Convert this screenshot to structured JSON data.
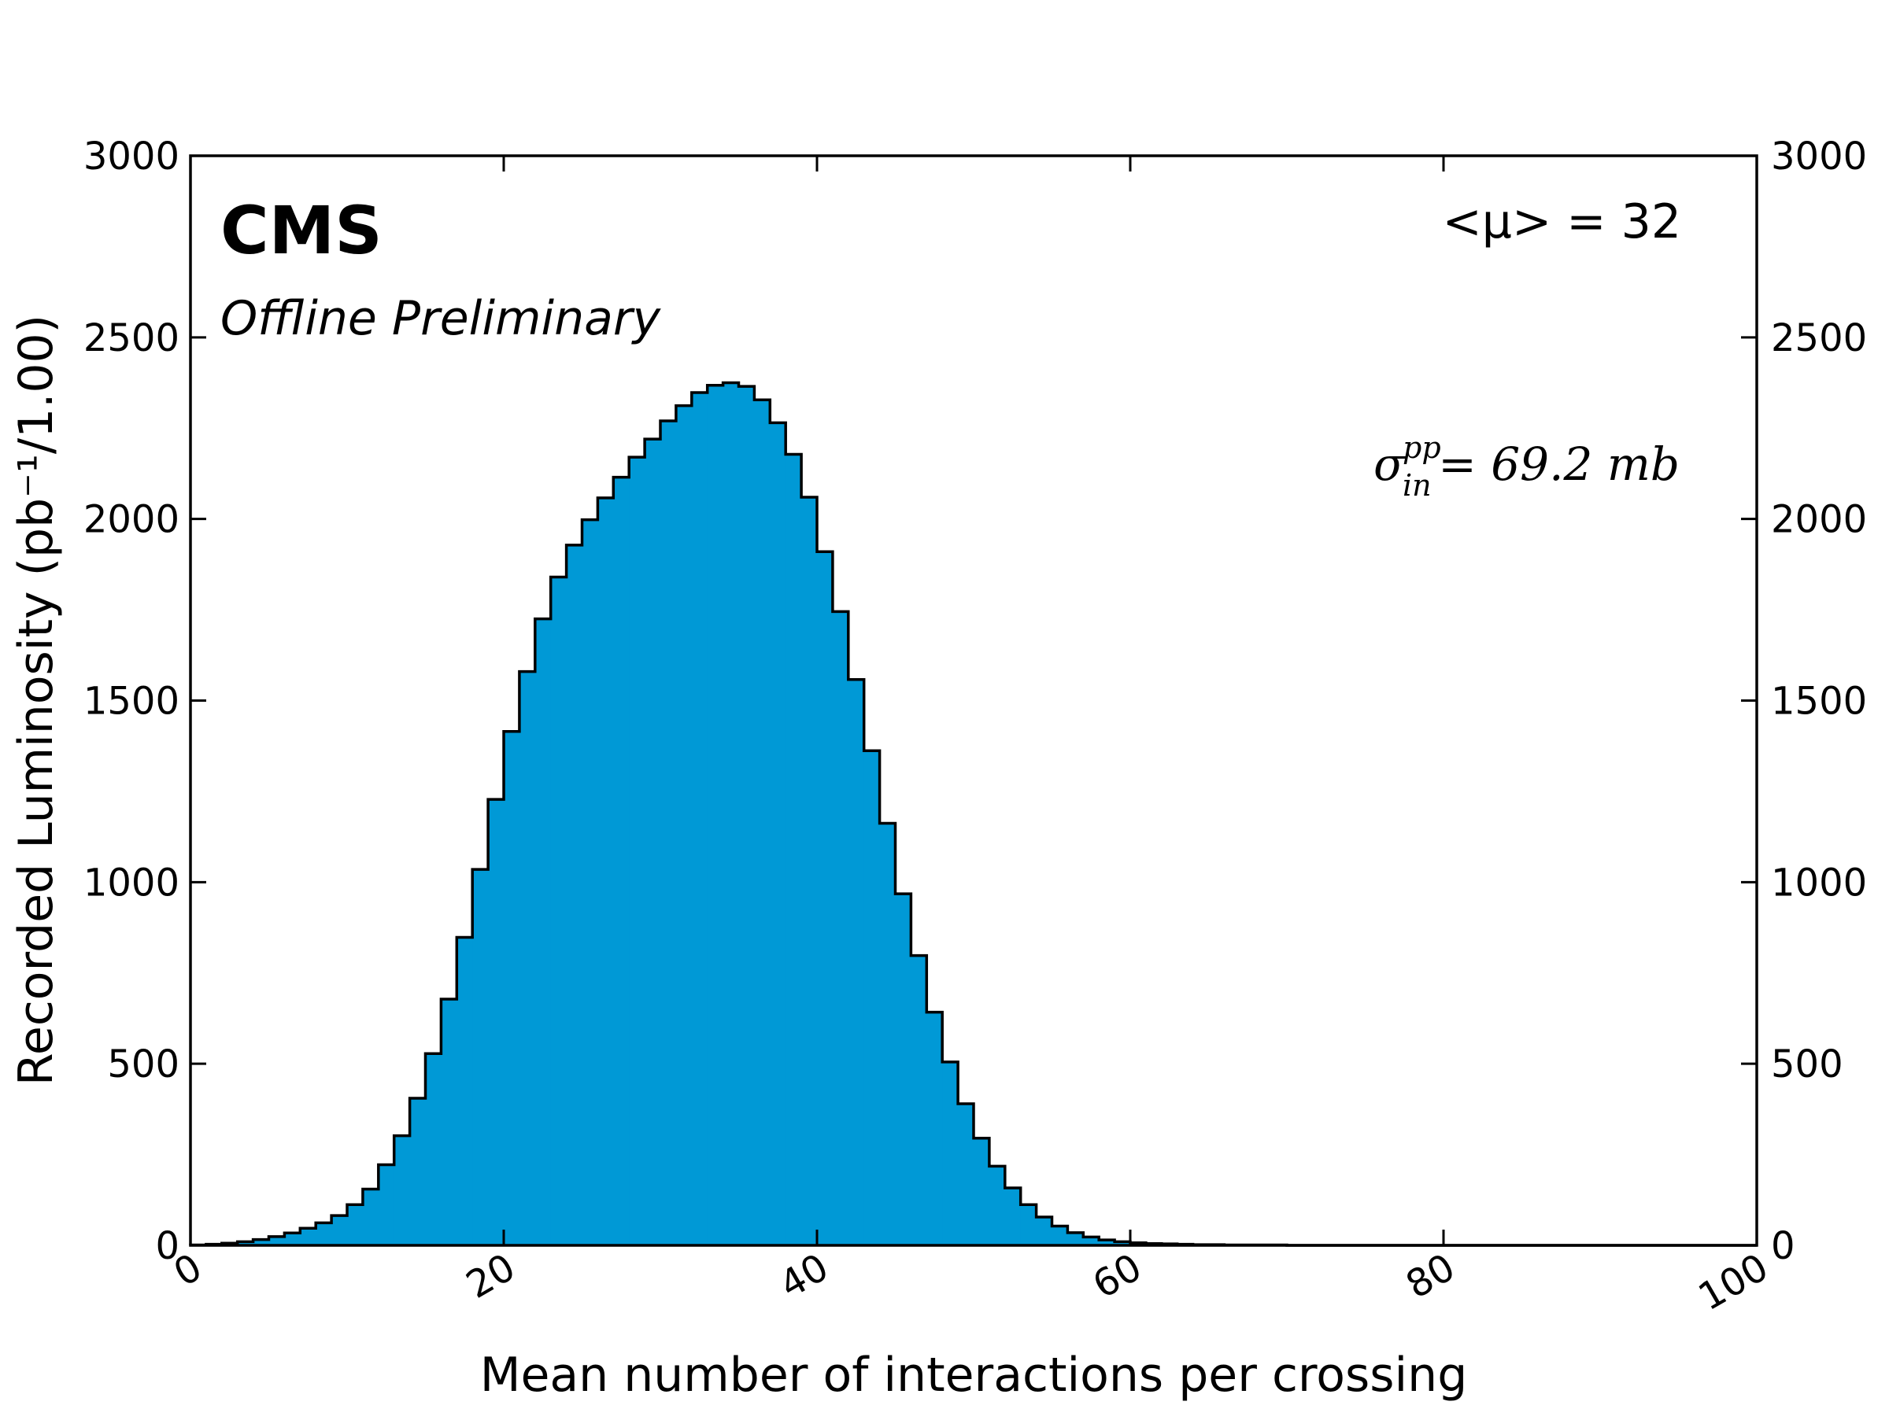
{
  "chart_data": {
    "type": "bar",
    "experiment": "CMS",
    "status": "Offline Preliminary",
    "mean_annotation": "<μ> = 32",
    "xsec_annotation": {
      "symbol": "σ",
      "superscript": "pp",
      "subscript": "in",
      "value": "= 69.2 mb"
    },
    "xlabel": "Mean number of interactions per crossing",
    "ylabel": "Recorded Luminosity (pb⁻¹/1.00)",
    "xlim": [
      0,
      100
    ],
    "ylim": [
      0,
      3000
    ],
    "x_ticks": [
      "0",
      "20",
      "40",
      "60",
      "80",
      "100"
    ],
    "y_ticks": [
      "0",
      "500",
      "1000",
      "1500",
      "2000",
      "2500",
      "3000"
    ],
    "y_ticks_right": [
      "0",
      "500",
      "1000",
      "1500",
      "2000",
      "2500",
      "3000"
    ],
    "bin_width": 1,
    "bin_start": 0,
    "fill_color": "#0099d6",
    "edge_color": "#000000",
    "values": [
      1,
      3,
      6,
      10,
      16,
      24,
      34,
      47,
      62,
      82,
      112,
      155,
      222,
      302,
      405,
      528,
      678,
      848,
      1035,
      1228,
      1415,
      1580,
      1725,
      1840,
      1928,
      1998,
      2058,
      2115,
      2170,
      2220,
      2270,
      2312,
      2348,
      2368,
      2375,
      2365,
      2328,
      2265,
      2178,
      2060,
      1910,
      1745,
      1558,
      1362,
      1162,
      968,
      798,
      642,
      505,
      390,
      295,
      218,
      158,
      112,
      78,
      53,
      35,
      23,
      15,
      10,
      7,
      5,
      4,
      3,
      2,
      2,
      1,
      1,
      1,
      1,
      0,
      0,
      0,
      0,
      0,
      0,
      0,
      0,
      0,
      0,
      0,
      0,
      0,
      0,
      0,
      0,
      0,
      0,
      0,
      0,
      0,
      0,
      0,
      0,
      0,
      0,
      0,
      0,
      0,
      0
    ]
  }
}
